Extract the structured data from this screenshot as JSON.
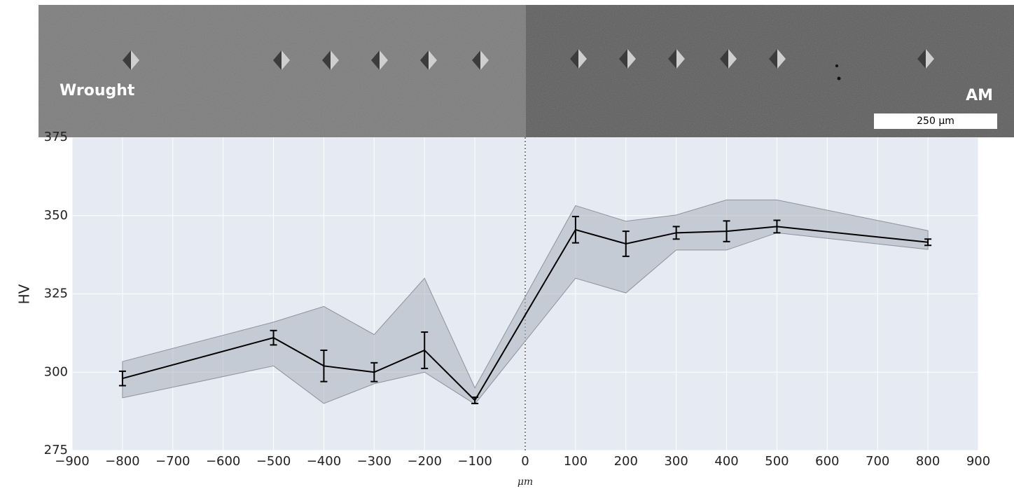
{
  "chart_data": {
    "type": "line",
    "image_labels": {
      "left": "Wrought",
      "right": "AM",
      "scale_bar": "250 µm"
    },
    "x_label": "μm",
    "y_label": "HV",
    "series": [
      {
        "color": "#000000",
        "band_color": "#a9b0bb",
        "x": [
          -800,
          -500,
          -400,
          -300,
          -200,
          -100,
          100,
          200,
          300,
          400,
          500,
          800
        ],
        "values": [
          298,
          311,
          302,
          300,
          307,
          291,
          345.5,
          341,
          344.5,
          345,
          346.5,
          341.5
        ],
        "errors": [
          2.3,
          2.3,
          5,
          3,
          5.8,
          1,
          4.2,
          4,
          2,
          3.3,
          2,
          1
        ],
        "band_min": [
          291.8,
          302,
          290,
          296.3,
          300,
          289.8,
          330,
          325.3,
          339,
          339,
          344.5,
          339.2
        ],
        "band_max": [
          303.4,
          316,
          321,
          312,
          330,
          295,
          353.2,
          348.2,
          350.2,
          355,
          355,
          345.2
        ]
      }
    ],
    "reference_x": 0,
    "xlim": [
      -900,
      900
    ],
    "xticks": [
      {
        "value": -900,
        "label": "−900"
      },
      {
        "value": -800,
        "label": "−800"
      },
      {
        "value": -700,
        "label": "−700"
      },
      {
        "value": -600,
        "label": "−600"
      },
      {
        "value": -500,
        "label": "−500"
      },
      {
        "value": -400,
        "label": "−400"
      },
      {
        "value": -300,
        "label": "−300"
      },
      {
        "value": -200,
        "label": "−200"
      },
      {
        "value": -100,
        "label": "−100"
      },
      0,
      100,
      200,
      300,
      400,
      500,
      600,
      700,
      800,
      900
    ],
    "ylim": [
      275,
      375
    ],
    "yticks": [
      275,
      300,
      325,
      350,
      375
    ],
    "grid": true
  }
}
